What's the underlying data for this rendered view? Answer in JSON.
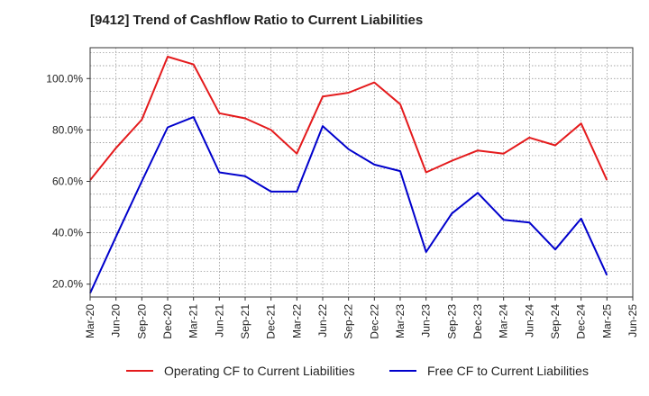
{
  "title": "[9412]  Trend of Cashflow Ratio to Current Liabilities",
  "chart_data": {
    "type": "line",
    "title": "[9412]  Trend of Cashflow Ratio to Current Liabilities",
    "xlabel": "",
    "ylabel": "",
    "x_ticks": [
      "Mar-20",
      "Jun-20",
      "Sep-20",
      "Dec-20",
      "Mar-21",
      "Jun-21",
      "Sep-21",
      "Dec-21",
      "Mar-22",
      "Jun-22",
      "Sep-22",
      "Dec-22",
      "Mar-23",
      "Jun-23",
      "Sep-23",
      "Dec-23",
      "Mar-24",
      "Jun-24",
      "Sep-24",
      "Dec-24",
      "Mar-25",
      "Jun-25"
    ],
    "y_ticks": [
      "20.0%",
      "40.0%",
      "60.0%",
      "80.0%",
      "100.0%"
    ],
    "y_tick_values": [
      20,
      40,
      60,
      80,
      100
    ],
    "ylim": [
      15,
      112
    ],
    "grid": true,
    "legend_position": "bottom",
    "categories": [
      "Mar-20",
      "Jun-20",
      "Sep-20",
      "Dec-20",
      "Mar-21",
      "Jun-21",
      "Sep-21",
      "Dec-21",
      "Mar-22",
      "Jun-22",
      "Sep-22",
      "Dec-22",
      "Mar-23",
      "Jun-23",
      "Sep-23",
      "Dec-23",
      "Mar-24",
      "Jun-24",
      "Sep-24",
      "Dec-24",
      "Mar-25"
    ],
    "series": [
      {
        "name": "Operating CF to Current Liabilities",
        "color": "#e41a1c",
        "values": [
          60.5,
          73.0,
          84.0,
          108.5,
          105.5,
          86.5,
          84.5,
          80.0,
          70.8,
          93.0,
          94.5,
          98.5,
          90.0,
          63.5,
          68.0,
          72.0,
          70.8,
          77.0,
          74.0,
          82.5,
          60.5
        ]
      },
      {
        "name": "Free CF to Current Liabilities",
        "color": "#0000cc",
        "values": [
          16.5,
          38.5,
          60.0,
          81.0,
          85.0,
          63.5,
          62.0,
          56.0,
          56.0,
          81.5,
          72.5,
          66.5,
          64.0,
          32.5,
          47.5,
          55.5,
          45.0,
          44.0,
          33.5,
          45.5,
          23.5
        ]
      }
    ]
  }
}
